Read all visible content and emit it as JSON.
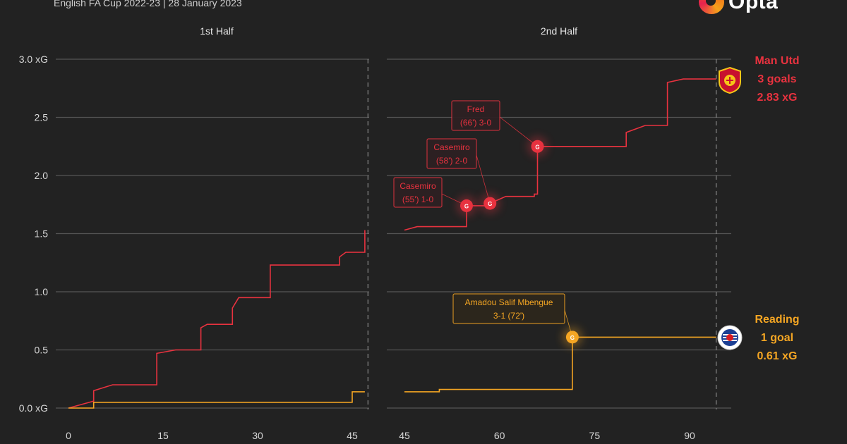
{
  "subtitle": "English FA Cup 2022-23 | 28 January 2023",
  "brand": {
    "name": "Opta"
  },
  "colors": {
    "background": "#222222",
    "man_utd": "#e8323f",
    "reading": "#f5a623",
    "grid": "#555555"
  },
  "teams": {
    "man_utd": {
      "name": "Man Utd",
      "goals_label": "3 goals",
      "xg_label": "2.83 xG"
    },
    "reading": {
      "name": "Reading",
      "goals_label": "1 goal",
      "xg_label": "0.61 xG"
    }
  },
  "chart_data": {
    "type": "line",
    "panels": [
      "1st Half",
      "2nd Half"
    ],
    "ylim": [
      0,
      3.0
    ],
    "y_ticks": [
      "0.0 xG",
      "0.5",
      "1.0",
      "1.5",
      "2.0",
      "2.5",
      "3.0 xG"
    ],
    "x_ticks_first_half": [
      "0",
      "15",
      "30",
      "45"
    ],
    "x_ticks_second_half": [
      "45",
      "60",
      "75",
      "90"
    ],
    "xlim_first_half": [
      0,
      48
    ],
    "xlim_second_half": [
      45,
      96
    ],
    "half_end_markers": [
      47.5,
      94.2
    ],
    "series": [
      {
        "name": "Man Utd",
        "color": "#e8323f",
        "first_half": [
          [
            0,
            0
          ],
          [
            4,
            0.06
          ],
          [
            4,
            0.15
          ],
          [
            7,
            0.2
          ],
          [
            14,
            0.2
          ],
          [
            14,
            0.47
          ],
          [
            17,
            0.5
          ],
          [
            21,
            0.5
          ],
          [
            21,
            0.69
          ],
          [
            22,
            0.72
          ],
          [
            26,
            0.72
          ],
          [
            26,
            0.86
          ],
          [
            27,
            0.95
          ],
          [
            32,
            0.95
          ],
          [
            32,
            1.23
          ],
          [
            43,
            1.23
          ],
          [
            43,
            1.3
          ],
          [
            44,
            1.34
          ],
          [
            47,
            1.34
          ],
          [
            47,
            1.53
          ]
        ],
        "second_half": [
          [
            45,
            1.53
          ],
          [
            47,
            1.56
          ],
          [
            54.8,
            1.56
          ],
          [
            54.8,
            1.74
          ],
          [
            58.5,
            1.74
          ],
          [
            58.5,
            1.76
          ],
          [
            61,
            1.82
          ],
          [
            65.5,
            1.82
          ],
          [
            65.5,
            1.84
          ],
          [
            66,
            1.84
          ],
          [
            66,
            2.25
          ],
          [
            80,
            2.25
          ],
          [
            80,
            2.37
          ],
          [
            83,
            2.43
          ],
          [
            86.5,
            2.43
          ],
          [
            86.5,
            2.8
          ],
          [
            89,
            2.83
          ],
          [
            94.2,
            2.83
          ]
        ]
      },
      {
        "name": "Reading",
        "color": "#f5a623",
        "first_half": [
          [
            0,
            0
          ],
          [
            4,
            0
          ],
          [
            4,
            0.05
          ],
          [
            45,
            0.05
          ],
          [
            45,
            0.14
          ],
          [
            47,
            0.14
          ]
        ],
        "second_half": [
          [
            45,
            0.14
          ],
          [
            50.5,
            0.14
          ],
          [
            50.5,
            0.16
          ],
          [
            71.5,
            0.16
          ],
          [
            71.5,
            0.61
          ],
          [
            94.2,
            0.61
          ]
        ]
      }
    ],
    "goals": [
      {
        "team": "Man Utd",
        "minute": 54.8,
        "xg": 1.74,
        "label_line1": "Casemiro",
        "label_line2": "(55') 1-0",
        "marker": "G"
      },
      {
        "team": "Man Utd",
        "minute": 58.5,
        "xg": 1.76,
        "label_line1": "Casemiro",
        "label_line2": "(58') 2-0",
        "marker": "G"
      },
      {
        "team": "Man Utd",
        "minute": 66,
        "xg": 2.25,
        "label_line1": "Fred",
        "label_line2": "(66') 3-0",
        "marker": "G"
      },
      {
        "team": "Reading",
        "minute": 71.5,
        "xg": 0.61,
        "label_line1": "Amadou Salif Mbengue",
        "label_line2": "3-1 (72')",
        "marker": "G"
      }
    ]
  }
}
